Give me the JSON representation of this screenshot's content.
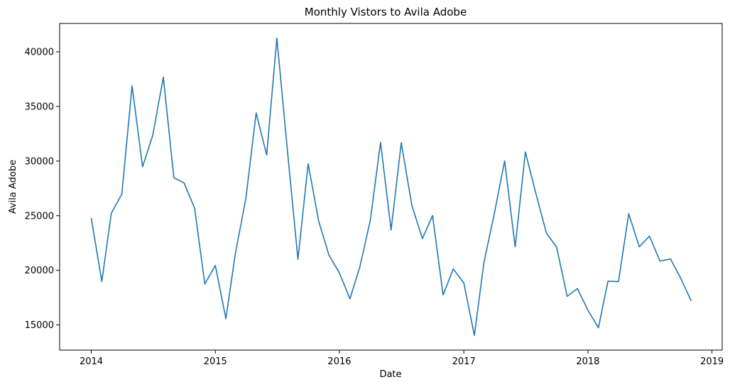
{
  "chart_data": {
    "type": "line",
    "title": "Monthly Vistors to Avila Adobe",
    "xlabel": "Date",
    "ylabel": "Avila Adobe",
    "grid": false,
    "legend": "none",
    "xlim": [
      "2013-09-30",
      "2019-01-31"
    ],
    "ylim": [
      12700,
      42600
    ],
    "xticks": [
      {
        "date": "2014-01-01",
        "label": "2014"
      },
      {
        "date": "2015-01-01",
        "label": "2015"
      },
      {
        "date": "2016-01-01",
        "label": "2016"
      },
      {
        "date": "2017-01-01",
        "label": "2017"
      },
      {
        "date": "2018-01-01",
        "label": "2018"
      },
      {
        "date": "2019-01-01",
        "label": "2019"
      }
    ],
    "yticks": [
      15000,
      20000,
      25000,
      30000,
      35000,
      40000
    ],
    "line_color": "#1f77b4",
    "series": [
      {
        "x": [
          "2014-01-01",
          "2014-02-01",
          "2014-03-01",
          "2014-04-01",
          "2014-05-01",
          "2014-06-01",
          "2014-07-01",
          "2014-08-01",
          "2014-09-01",
          "2014-10-01",
          "2014-11-01",
          "2014-12-01",
          "2015-01-01",
          "2015-02-01",
          "2015-03-01",
          "2015-04-01",
          "2015-05-01",
          "2015-06-01",
          "2015-07-01",
          "2015-08-01",
          "2015-09-01",
          "2015-10-01",
          "2015-11-01",
          "2015-12-01",
          "2016-01-01",
          "2016-02-01",
          "2016-03-01",
          "2016-04-01",
          "2016-05-01",
          "2016-06-01",
          "2016-07-01",
          "2016-08-01",
          "2016-09-01",
          "2016-10-01",
          "2016-11-01",
          "2016-12-01",
          "2017-01-01",
          "2017-02-01",
          "2017-03-01",
          "2017-04-01",
          "2017-05-01",
          "2017-06-01",
          "2017-07-01",
          "2017-08-01",
          "2017-09-01",
          "2017-10-01",
          "2017-11-01",
          "2017-12-01",
          "2018-01-01",
          "2018-02-01",
          "2018-03-01",
          "2018-04-01",
          "2018-05-01",
          "2018-06-01",
          "2018-07-01",
          "2018-08-01",
          "2018-09-01",
          "2018-10-01",
          "2018-11-01"
        ],
        "values": [
          24778,
          18976,
          25231,
          26989,
          36883,
          29487,
          32378,
          37680,
          28473,
          27995,
          25691,
          18754,
          20438,
          15578,
          21546,
          26633,
          34397,
          30566,
          41255,
          30991,
          21006,
          29750,
          24508,
          21406,
          19759,
          17398,
          20300,
          24605,
          31714,
          23695,
          31683,
          25957,
          22904,
          25016,
          17751,
          20130,
          18834,
          14046,
          20699,
          25249,
          30011,
          22150,
          30832,
          27026,
          23398,
          22124,
          17621,
          18329,
          16349,
          14745,
          19004,
          18967,
          25184,
          22155,
          23133,
          20848,
          21039,
          19271,
          17191
        ]
      }
    ]
  }
}
